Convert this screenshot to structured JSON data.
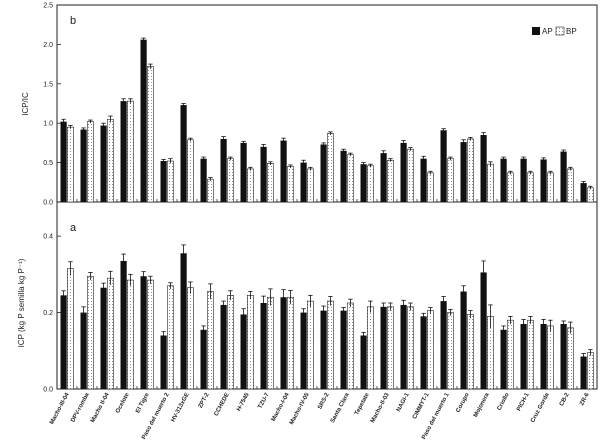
{
  "chart_data": [
    {
      "type": "bar",
      "panel_label": "b",
      "ylabel": "ICP/IC",
      "ylim": [
        0,
        2.5
      ],
      "yticks": [
        "0.0",
        "0.5",
        "1.0",
        "1.5",
        "2.0",
        "2.5"
      ],
      "grid": false,
      "legend_position": "top-right",
      "categories": [
        "Macho-III-04",
        "DPV-romba",
        "Macho II-04",
        "Ocelote",
        "El Tigre",
        "Paso del muerto 2",
        "HV-313xGE",
        "ZPT-2",
        "CCHEDE",
        "H-7545",
        "TZU-7",
        "Macho-I-04",
        "Macho-IV-05",
        "SRS-2",
        "Santa Clara",
        "Tepetate",
        "Macho-II-03",
        "NAGI-1",
        "CIMMYT-1",
        "Paso del muerto 1",
        "Corupo",
        "Mojonera",
        "Criollo",
        "PICH-1",
        "Cruz Gorda",
        "CB-2",
        "ZR-6"
      ],
      "series": [
        {
          "name": "AP",
          "values": [
            1.02,
            0.92,
            0.97,
            1.28,
            2.06,
            0.52,
            1.23,
            0.55,
            0.8,
            0.75,
            0.7,
            0.78,
            0.5,
            0.73,
            0.65,
            0.48,
            0.62,
            0.75,
            0.55,
            0.91,
            0.76,
            0.85,
            0.55,
            0.55,
            0.54,
            0.64,
            0.24
          ],
          "errors": [
            0.03,
            0.02,
            0.03,
            0.03,
            0.02,
            0.02,
            0.02,
            0.02,
            0.03,
            0.02,
            0.03,
            0.03,
            0.03,
            0.02,
            0.02,
            0.02,
            0.03,
            0.03,
            0.03,
            0.02,
            0.03,
            0.03,
            0.02,
            0.02,
            0.02,
            0.02,
            0.02
          ]
        },
        {
          "name": "BP",
          "values": [
            0.95,
            1.02,
            1.05,
            1.28,
            1.72,
            0.52,
            0.79,
            0.29,
            0.55,
            0.42,
            0.49,
            0.45,
            0.42,
            0.87,
            0.6,
            0.46,
            0.53,
            0.67,
            0.37,
            0.55,
            0.8,
            0.48,
            0.37,
            0.37,
            0.37,
            0.42,
            0.18
          ],
          "errors": [
            0.02,
            0.02,
            0.04,
            0.03,
            0.03,
            0.03,
            0.02,
            0.02,
            0.02,
            0.02,
            0.02,
            0.02,
            0.02,
            0.02,
            0.02,
            0.02,
            0.02,
            0.02,
            0.02,
            0.02,
            0.02,
            0.03,
            0.02,
            0.02,
            0.02,
            0.02,
            0.02
          ]
        }
      ]
    },
    {
      "type": "bar",
      "panel_label": "a",
      "ylabel": "ICP (kg P semilla kg P⁻¹)",
      "ylim": [
        0,
        0.45
      ],
      "yticks": [
        "0.0",
        "0.2",
        "0.4"
      ],
      "grid": false,
      "categories": [
        "Macho-III-04",
        "DPV-romba",
        "Macho II-04",
        "Ocelote",
        "El Tigre",
        "Paso del muerto 2",
        "HV-313xGE",
        "ZPT-2",
        "CCHEDE",
        "H-7545",
        "TZU-7",
        "Macho-I-04",
        "Macho-IV-05",
        "SRS-2",
        "Santa Clara",
        "Tepetate",
        "Macho-II-03",
        "NAGI-1",
        "CIMMYT-1",
        "Paso del muerto 1",
        "Corupo",
        "Mojonera",
        "Criollo",
        "PICH-1",
        "Cruz Gorda",
        "CB-2",
        "ZR-6"
      ],
      "series": [
        {
          "name": "AP",
          "values": [
            0.245,
            0.2,
            0.265,
            0.335,
            0.295,
            0.14,
            0.355,
            0.155,
            0.22,
            0.195,
            0.225,
            0.24,
            0.2,
            0.205,
            0.205,
            0.14,
            0.215,
            0.22,
            0.19,
            0.23,
            0.255,
            0.305,
            0.155,
            0.17,
            0.17,
            0.17,
            0.085
          ],
          "errors": [
            0.012,
            0.015,
            0.012,
            0.018,
            0.012,
            0.01,
            0.022,
            0.01,
            0.01,
            0.015,
            0.018,
            0.02,
            0.01,
            0.012,
            0.008,
            0.008,
            0.01,
            0.012,
            0.008,
            0.012,
            0.015,
            0.03,
            0.01,
            0.012,
            0.012,
            0.008,
            0.008
          ]
        },
        {
          "name": "BP",
          "values": [
            0.315,
            0.295,
            0.29,
            0.285,
            0.285,
            0.27,
            0.265,
            0.255,
            0.245,
            0.245,
            0.24,
            0.24,
            0.23,
            0.23,
            0.225,
            0.215,
            0.215,
            0.215,
            0.205,
            0.2,
            0.195,
            0.19,
            0.18,
            0.18,
            0.165,
            0.16,
            0.095
          ],
          "errors": [
            0.018,
            0.01,
            0.018,
            0.015,
            0.01,
            0.008,
            0.015,
            0.02,
            0.012,
            0.01,
            0.022,
            0.018,
            0.015,
            0.012,
            0.01,
            0.015,
            0.01,
            0.01,
            0.008,
            0.008,
            0.01,
            0.03,
            0.01,
            0.01,
            0.015,
            0.015,
            0.008
          ]
        }
      ]
    }
  ],
  "colors": {
    "ap": "#111111",
    "bp": "#ffffff",
    "axis": "#222222"
  }
}
